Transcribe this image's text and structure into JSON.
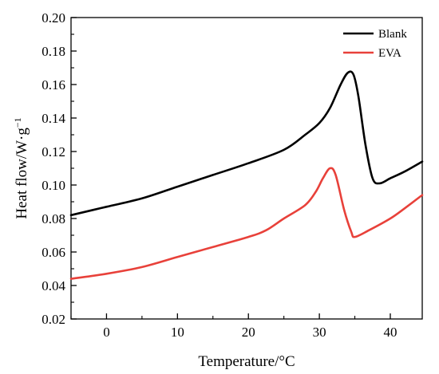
{
  "chart_data": {
    "type": "line",
    "xlabel": "Temperature/°C",
    "ylabel_main": "Heat flow/W·g",
    "ylabel_sup": "−1",
    "xlim": [
      -5,
      44.5
    ],
    "ylim": [
      0.02,
      0.2
    ],
    "xticks": [
      0,
      10,
      20,
      30,
      40
    ],
    "xtick_labels": [
      "0",
      "10",
      "20",
      "30",
      "40"
    ],
    "yticks": [
      0.02,
      0.04,
      0.06,
      0.08,
      0.1,
      0.12,
      0.14,
      0.16,
      0.18,
      0.2
    ],
    "ytick_labels": [
      "0.02",
      "0.04",
      "0.06",
      "0.08",
      "0.10",
      "0.12",
      "0.14",
      "0.16",
      "0.18",
      "0.20"
    ],
    "grid": false,
    "legend_position": "top-right",
    "series": [
      {
        "name": "Blank",
        "color": "#000000",
        "points": [
          [
            -5,
            0.082
          ],
          [
            0,
            0.087
          ],
          [
            5,
            0.092
          ],
          [
            10,
            0.099
          ],
          [
            15,
            0.106
          ],
          [
            20,
            0.113
          ],
          [
            25,
            0.121
          ],
          [
            28,
            0.13
          ],
          [
            30,
            0.137
          ],
          [
            31.5,
            0.146
          ],
          [
            33,
            0.16
          ],
          [
            34,
            0.167
          ],
          [
            34.8,
            0.166
          ],
          [
            35.5,
            0.153
          ],
          [
            36.5,
            0.124
          ],
          [
            37.5,
            0.104
          ],
          [
            38.5,
            0.101
          ],
          [
            40,
            0.104
          ],
          [
            42,
            0.108
          ],
          [
            44.5,
            0.114
          ]
        ]
      },
      {
        "name": "EVA",
        "color": "#e8413a",
        "points": [
          [
            -5,
            0.044
          ],
          [
            0,
            0.047
          ],
          [
            5,
            0.051
          ],
          [
            10,
            0.057
          ],
          [
            15,
            0.063
          ],
          [
            20,
            0.069
          ],
          [
            22.5,
            0.073
          ],
          [
            25,
            0.08
          ],
          [
            28,
            0.088
          ],
          [
            29.5,
            0.096
          ],
          [
            30.5,
            0.104
          ],
          [
            31.5,
            0.11
          ],
          [
            32.3,
            0.106
          ],
          [
            33.5,
            0.085
          ],
          [
            34.5,
            0.072
          ],
          [
            35,
            0.069
          ],
          [
            37,
            0.073
          ],
          [
            40,
            0.08
          ],
          [
            42,
            0.086
          ],
          [
            44.5,
            0.094
          ]
        ]
      }
    ]
  }
}
